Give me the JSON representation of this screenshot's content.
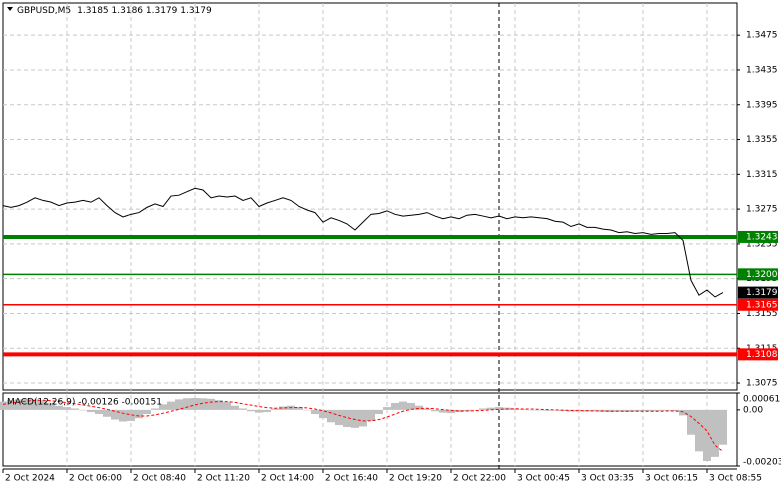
{
  "chart_data": [
    {
      "type": "line",
      "title": "GBPUSD,M5",
      "quote": "1.3185 1.3186 1.3179 1.3179",
      "color": "#000000",
      "grid": true,
      "categories": [
        "2 Oct 2024",
        null,
        null,
        null,
        null,
        null,
        null,
        null,
        "2 Oct 06:00",
        null,
        null,
        null,
        null,
        null,
        null,
        null,
        "2 Oct 08:40",
        null,
        null,
        null,
        null,
        null,
        null,
        null,
        "2 Oct 11:20",
        null,
        null,
        null,
        null,
        null,
        null,
        null,
        "2 Oct 14:00",
        null,
        null,
        null,
        null,
        null,
        null,
        null,
        "2 Oct 16:40",
        null,
        null,
        null,
        null,
        null,
        null,
        null,
        "2 Oct 19:20",
        null,
        null,
        null,
        null,
        null,
        null,
        null,
        "2 Oct 22:00",
        null,
        null,
        null,
        null,
        null,
        null,
        null,
        "3 Oct 00:45",
        null,
        null,
        null,
        null,
        null,
        null,
        null,
        "3 Oct 03:35",
        null,
        null,
        null,
        null,
        null,
        null,
        null,
        "3 Oct 06:15",
        null,
        null,
        null,
        null,
        null,
        null,
        null,
        "3 Oct 08:55",
        null,
        null
      ],
      "values": [
        1.3279,
        1.3277,
        1.3279,
        1.3283,
        1.3288,
        1.3285,
        1.3283,
        1.3279,
        1.3282,
        1.3283,
        1.3285,
        1.3283,
        1.3288,
        1.3279,
        1.3271,
        1.3266,
        1.3269,
        1.3271,
        1.3277,
        1.3281,
        1.3278,
        1.329,
        1.3291,
        1.3295,
        1.3299,
        1.3297,
        1.3288,
        1.329,
        1.3289,
        1.329,
        1.3285,
        1.3288,
        1.3278,
        1.3282,
        1.3285,
        1.3288,
        1.3285,
        1.3278,
        1.3274,
        1.3271,
        1.326,
        1.3265,
        1.3262,
        1.3258,
        1.3251,
        1.326,
        1.3269,
        1.327,
        1.3273,
        1.3269,
        1.3267,
        1.3268,
        1.3269,
        1.3271,
        1.3267,
        1.3264,
        1.3266,
        1.3264,
        1.3268,
        1.3269,
        1.3267,
        1.3265,
        1.3267,
        1.3264,
        1.3266,
        1.3265,
        1.3266,
        1.3265,
        1.3264,
        1.3261,
        1.326,
        1.3255,
        1.3258,
        1.3254,
        1.3254,
        1.3252,
        1.3251,
        1.3248,
        1.3249,
        1.3247,
        1.3248,
        1.3246,
        1.3247,
        1.3247,
        1.3248,
        1.3239,
        1.3193,
        1.3176,
        1.3182,
        1.3174,
        1.3179
      ],
      "ylim": [
        1.3067,
        1.3512
      ],
      "yticks": [
        1.3475,
        1.3435,
        1.3395,
        1.3355,
        1.3315,
        1.3275,
        1.3235,
        1.3195,
        1.3155,
        1.3115,
        1.3075
      ],
      "levels": [
        {
          "value": 1.3243,
          "color": "#008000",
          "thick": true
        },
        {
          "value": 1.32,
          "label": "1.3200",
          "color": "#008000",
          "thick": false
        },
        {
          "value": 1.3165,
          "color": "#ff0000",
          "thick": false
        },
        {
          "value": 1.3108,
          "color": "#ff0000",
          "thick": true
        }
      ],
      "last_price": 1.3179
    },
    {
      "type": "macd",
      "title": "MACD(12,26,9) -0.00126 -0.00151",
      "histogram": {
        "color": "#c0c0c0",
        "values": [
          0.0003,
          0.00035,
          0.00038,
          0.0004,
          0.00038,
          0.00035,
          0.00025,
          0.00015,
          0.0001,
          5e-05,
          0,
          -8e-05,
          -0.00015,
          -0.00025,
          -0.00035,
          -0.00042,
          -0.0004,
          -0.0003,
          -0.00015,
          5e-05,
          0.0002,
          0.0003,
          0.00038,
          0.00042,
          0.00043,
          0.00042,
          0.0004,
          0.00035,
          0.00028,
          0.00015,
          5e-05,
          -5e-05,
          -0.0001,
          -8e-05,
          5e-05,
          0.00012,
          0.00015,
          0.0001,
          0,
          -0.00015,
          -0.0003,
          -0.00045,
          -0.00055,
          -0.00062,
          -0.00065,
          -0.0006,
          -0.0004,
          -0.00015,
          0.0001,
          0.00025,
          0.0003,
          0.00025,
          0.00015,
          5e-05,
          -5e-05,
          -0.0001,
          -0.00012,
          -8e-05,
          -5e-05,
          0,
          5e-05,
          8e-05,
          0.0001,
          8e-05,
          5e-05,
          2e-05,
          0,
          -2e-05,
          -3e-05,
          -2e-05,
          -4e-05,
          -6e-05,
          -5e-05,
          -6e-05,
          -5e-05,
          -7e-05,
          -8e-05,
          -6e-05,
          -7e-05,
          -6e-05,
          -5e-05,
          -5e-05,
          -4e-05,
          -3e-05,
          -5e-05,
          -0.0002,
          -0.0009,
          -0.0015,
          -0.00185,
          -0.0017,
          -0.00126
        ]
      },
      "signal": {
        "color": "#ff0000",
        "values": [
          0.0002,
          0.00025,
          0.00028,
          0.00032,
          0.00034,
          0.00035,
          0.00033,
          0.0003,
          0.00026,
          0.00022,
          0.00018,
          0.00013,
          8e-05,
          2e-05,
          -5e-05,
          -0.00012,
          -0.00018,
          -0.00022,
          -0.00022,
          -0.00018,
          -0.00012,
          -5e-05,
          2e-05,
          0.0001,
          0.00018,
          0.00024,
          0.00028,
          0.0003,
          0.0003,
          0.00027,
          0.00022,
          0.00017,
          0.00012,
          8e-05,
          6e-05,
          7e-05,
          8e-05,
          9e-05,
          7e-05,
          3e-05,
          -3e-05,
          -0.00011,
          -0.0002,
          -0.00028,
          -0.00035,
          -0.0004,
          -0.0004,
          -0.00035,
          -0.00026,
          -0.00015,
          -5e-05,
          2e-05,
          5e-05,
          6e-05,
          4e-05,
          1e-05,
          -2e-05,
          -4e-05,
          -4e-05,
          -3e-05,
          -2e-05,
          0,
          2e-05,
          3e-05,
          4e-05,
          3e-05,
          3e-05,
          2e-05,
          1e-05,
          0,
          -1e-05,
          -2e-05,
          -3e-05,
          -3e-05,
          -4e-05,
          -4e-05,
          -5e-05,
          -5e-05,
          -5e-05,
          -5e-05,
          -5e-05,
          -5e-05,
          -5e-05,
          -4e-05,
          -4e-05,
          -7e-05,
          -0.00024,
          -0.00049,
          -0.00076,
          -0.00128,
          -0.00151
        ]
      },
      "ylim": [
        -0.00203,
        0.00061
      ],
      "yticks": [
        0.00061,
        {
          "value": 0,
          "label": "0.00"
        },
        -0.00203
      ]
    }
  ]
}
